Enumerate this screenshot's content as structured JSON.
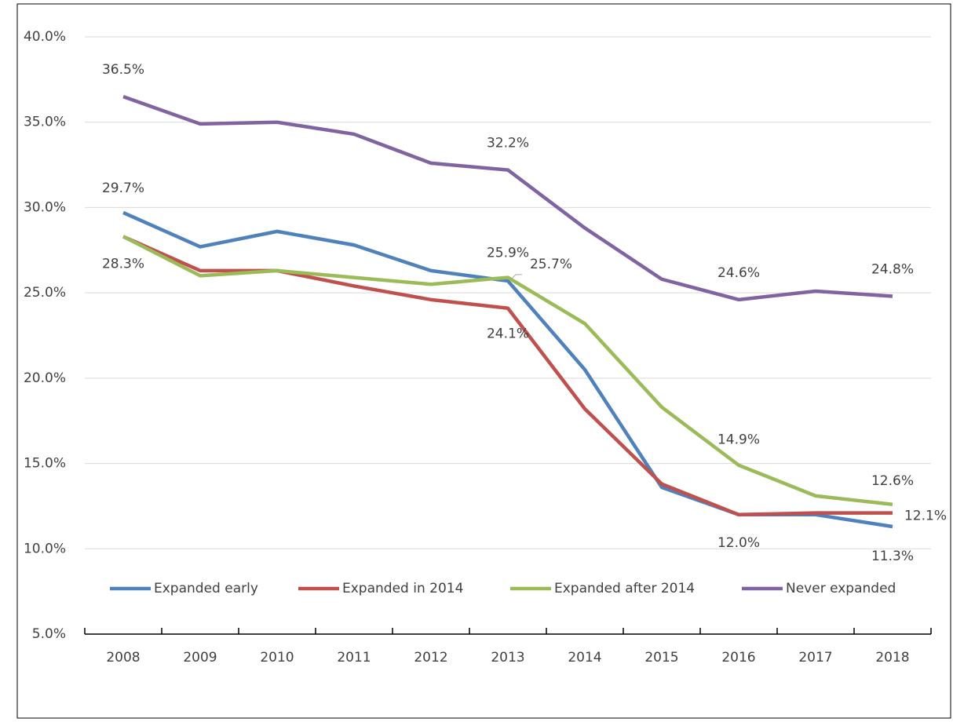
{
  "chart_data": {
    "type": "line",
    "categories": [
      "2008",
      "2009",
      "2010",
      "2011",
      "2012",
      "2013",
      "2014",
      "2015",
      "2016",
      "2017",
      "2018"
    ],
    "series": [
      {
        "name": "Expanded early",
        "color": "#4f81bd",
        "values": [
          29.7,
          27.7,
          28.6,
          27.8,
          26.3,
          25.7,
          20.5,
          13.6,
          12.0,
          12.0,
          11.3
        ],
        "value_labels": [
          "29.7%",
          null,
          null,
          null,
          null,
          "25.7%",
          null,
          null,
          null,
          null,
          "11.3%"
        ]
      },
      {
        "name": "Expanded in 2014",
        "color": "#c0504d",
        "values": [
          28.3,
          26.3,
          26.3,
          25.4,
          24.6,
          24.1,
          18.2,
          13.8,
          12.0,
          12.1,
          12.1
        ],
        "value_labels": [
          null,
          null,
          null,
          null,
          null,
          "24.1%",
          null,
          null,
          "12.0%",
          null,
          "12.1%"
        ]
      },
      {
        "name": "Expanded after 2014",
        "color": "#9bbb59",
        "values": [
          28.3,
          26.0,
          26.3,
          25.9,
          25.5,
          25.9,
          23.2,
          18.3,
          14.9,
          13.1,
          12.6
        ],
        "value_labels": [
          "28.3%",
          null,
          null,
          null,
          null,
          "25.9%",
          null,
          null,
          "14.9%",
          null,
          "12.6%"
        ]
      },
      {
        "name": "Never expanded",
        "color": "#8064a2",
        "values": [
          36.5,
          34.9,
          35.0,
          34.3,
          32.6,
          32.2,
          28.8,
          25.8,
          24.6,
          25.1,
          24.8
        ],
        "value_labels": [
          "36.5%",
          null,
          null,
          null,
          null,
          "32.2%",
          null,
          null,
          "24.6%",
          null,
          "24.8%"
        ]
      }
    ],
    "ylim": [
      5,
      40
    ],
    "yticks": [
      {
        "value": 5,
        "label": "5.0%"
      },
      {
        "value": 10,
        "label": "10.0%"
      },
      {
        "value": 15,
        "label": "15.0%"
      },
      {
        "value": 20,
        "label": "20.0%"
      },
      {
        "value": 25,
        "label": "25.0%"
      },
      {
        "value": 30,
        "label": "30.0%"
      },
      {
        "value": 35,
        "label": "35.0%"
      },
      {
        "value": 40,
        "label": "40.0%"
      }
    ],
    "grid": true,
    "legend": "bottom"
  }
}
